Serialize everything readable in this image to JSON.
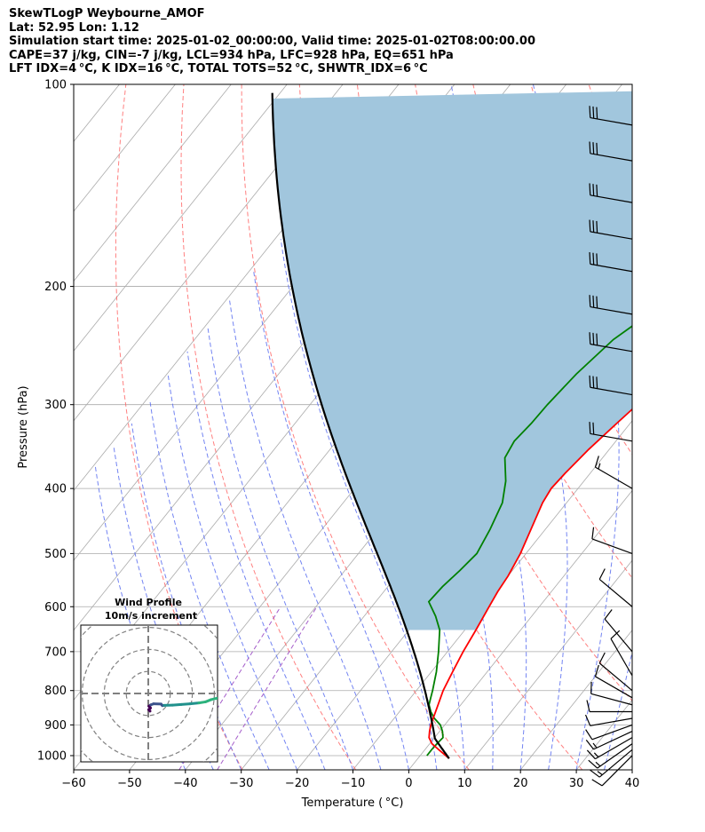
{
  "header": {
    "title_line": "SkewTLogP Weybourne_AMOF",
    "location_line": "Lat: 52.95   Lon: 1.12",
    "time_line": "Simulation start time: 2025-01-02_00:00:00, Valid time: 2025-01-02T08:00:00.00",
    "indices_line_1": "CAPE=37 j/kg, CIN=-7 j/kg, LCL=934 hPa, LFC=928 hPa, EQ=651 hPa",
    "indices_line_2": "LFT IDX=4 °C, K IDX=16 °C, TOTAL TOTS=52 °C, SHWTR_IDX=6 °C"
  },
  "chart_data": [
    {
      "type": "line",
      "subtype": "skew-T log-P diagram",
      "xlabel": "Temperature ( °C)",
      "ylabel": "Pressure (hPa)",
      "xlim": [
        -60,
        40
      ],
      "ylim": [
        1050,
        100
      ],
      "y_scale": "log",
      "x_ticks": [
        -60,
        -50,
        -40,
        -30,
        -20,
        -10,
        0,
        10,
        20,
        30,
        40
      ],
      "x_tick_labels": [
        "−60",
        "−50",
        "−40",
        "−30",
        "−20",
        "−10",
        "0",
        "10",
        "20",
        "30",
        "40"
      ],
      "y_ticks": [
        100,
        200,
        300,
        400,
        500,
        600,
        700,
        800,
        900,
        1000
      ],
      "grid": true,
      "series": [
        {
          "role": "temperature",
          "color": "#ff0000",
          "points": [
            [
              1010,
              5.6
            ],
            [
              980,
              2.5
            ],
            [
              960,
              0.4
            ],
            [
              940,
              -1.0
            ],
            [
              920,
              -1.8
            ],
            [
              900,
              -2.5
            ],
            [
              850,
              -3.8
            ],
            [
              800,
              -5.2
            ],
            [
              750,
              -6.2
            ],
            [
              700,
              -7.2
            ],
            [
              650,
              -8.0
            ],
            [
              600,
              -9.0
            ],
            [
              570,
              -9.6
            ],
            [
              540,
              -10.0
            ],
            [
              500,
              -11.0
            ],
            [
              450,
              -13.0
            ],
            [
              420,
              -14.3
            ],
            [
              400,
              -14.8
            ],
            [
              380,
              -14.5
            ],
            [
              350,
              -13.7
            ],
            [
              320,
              -12.4
            ],
            [
              300,
              -11.4
            ],
            [
              270,
              -10.3
            ],
            [
              250,
              -8.7
            ],
            [
              230,
              -6.3
            ],
            [
              200,
              -3.3
            ],
            [
              170,
              -1.0
            ],
            [
              150,
              0.8
            ],
            [
              130,
              1.6
            ],
            [
              115,
              1.9
            ],
            [
              100,
              2.6
            ]
          ]
        },
        {
          "role": "dewpoint",
          "color": "#008000",
          "points": [
            [
              1000,
              1.2
            ],
            [
              980,
              1.2
            ],
            [
              960,
              1.3
            ],
            [
              940,
              1.5
            ],
            [
              920,
              0.5
            ],
            [
              900,
              -0.8
            ],
            [
              880,
              -2.8
            ],
            [
              860,
              -4.4
            ],
            [
              840,
              -5.7
            ],
            [
              820,
              -6.4
            ],
            [
              800,
              -7.1
            ],
            [
              750,
              -9.1
            ],
            [
              700,
              -11.6
            ],
            [
              650,
              -14.5
            ],
            [
              620,
              -17.2
            ],
            [
              590,
              -20.5
            ],
            [
              560,
              -20.2
            ],
            [
              530,
              -19.4
            ],
            [
              500,
              -18.8
            ],
            [
              460,
              -19.9
            ],
            [
              420,
              -21.5
            ],
            [
              390,
              -24.0
            ],
            [
              360,
              -27.5
            ],
            [
              340,
              -28.2
            ],
            [
              320,
              -27.7
            ],
            [
              300,
              -27.5
            ],
            [
              270,
              -26.7
            ],
            [
              240,
              -25.0
            ],
            [
              220,
              -22.3
            ],
            [
              200,
              -20.3
            ],
            [
              180,
              -19.0
            ],
            [
              150,
              -16.0
            ],
            [
              130,
              -12.1
            ],
            [
              115,
              -9.0
            ],
            [
              100,
              -5.0
            ]
          ]
        },
        {
          "role": "parcel",
          "color": "#000000",
          "from_surface_T": 5.6,
          "from_surface_Td": 1.2,
          "surface_p": 1010
        }
      ],
      "shading": {
        "between": "parcel and temperature",
        "color": "#a1c6dd"
      },
      "background_lines": {
        "isotherms": {
          "color": "#aaaaaa",
          "step": 10
        },
        "dry_adiabats": {
          "color": "#ff6060",
          "style": "dashed"
        },
        "moist_adiabats": {
          "color": "#5a6ff0",
          "style": "dashed"
        },
        "mixing_ratio": {
          "color": "#9b4dc4",
          "style": "dashed"
        }
      },
      "wind_barbs": {
        "color": "#000000",
        "levels": [
          {
            "p": 1000,
            "dir": 225,
            "spd": 12
          },
          {
            "p": 980,
            "dir": 230,
            "spd": 14
          },
          {
            "p": 960,
            "dir": 235,
            "spd": 15
          },
          {
            "p": 940,
            "dir": 240,
            "spd": 15
          },
          {
            "p": 920,
            "dir": 245,
            "spd": 14
          },
          {
            "p": 900,
            "dir": 250,
            "spd": 12
          },
          {
            "p": 880,
            "dir": 260,
            "spd": 10
          },
          {
            "p": 860,
            "dir": 270,
            "spd": 10
          },
          {
            "p": 840,
            "dir": 285,
            "spd": 10
          },
          {
            "p": 820,
            "dir": 300,
            "spd": 11
          },
          {
            "p": 800,
            "dir": 310,
            "spd": 12
          },
          {
            "p": 760,
            "dir": 330,
            "spd": 10
          },
          {
            "p": 700,
            "dir": 320,
            "spd": 10
          },
          {
            "p": 600,
            "dir": 310,
            "spd": 10
          },
          {
            "p": 500,
            "dir": 290,
            "spd": 10
          },
          {
            "p": 400,
            "dir": 300,
            "spd": 15
          },
          {
            "p": 340,
            "dir": 280,
            "spd": 20
          },
          {
            "p": 290,
            "dir": 280,
            "spd": 30
          },
          {
            "p": 250,
            "dir": 280,
            "spd": 30
          },
          {
            "p": 220,
            "dir": 280,
            "spd": 30
          },
          {
            "p": 190,
            "dir": 280,
            "spd": 30
          },
          {
            "p": 170,
            "dir": 280,
            "spd": 30
          },
          {
            "p": 150,
            "dir": 280,
            "spd": 30
          },
          {
            "p": 130,
            "dir": 280,
            "spd": 30
          },
          {
            "p": 115,
            "dir": 280,
            "spd": 30
          }
        ]
      }
    },
    {
      "type": "line",
      "subtype": "hodograph",
      "title": "Wind Profile",
      "subtitle": "10m/s increment",
      "ring_increment_ms": 10,
      "grid": true,
      "series": [
        {
          "name": "",
          "colormap": [
            "#440154",
            "#3b528b",
            "#21918c",
            "#2db27d"
          ],
          "points_uv": [
            [
              0.8,
              -8.0
            ],
            [
              0.2,
              -7.3
            ],
            [
              1.0,
              -6.6
            ],
            [
              0.3,
              -5.8
            ],
            [
              1.1,
              -5.2
            ],
            [
              2.4,
              -4.7
            ],
            [
              5.8,
              -4.8
            ],
            [
              6.4,
              -5.5
            ],
            [
              7.2,
              -5.4
            ],
            [
              11.0,
              -5.3
            ],
            [
              15.0,
              -5.0
            ],
            [
              19.0,
              -4.7
            ],
            [
              23.0,
              -4.3
            ],
            [
              26.0,
              -3.8
            ],
            [
              28.5,
              -2.8
            ],
            [
              31.0,
              -2.2
            ],
            [
              33.0,
              -2.1
            ]
          ]
        }
      ]
    }
  ]
}
